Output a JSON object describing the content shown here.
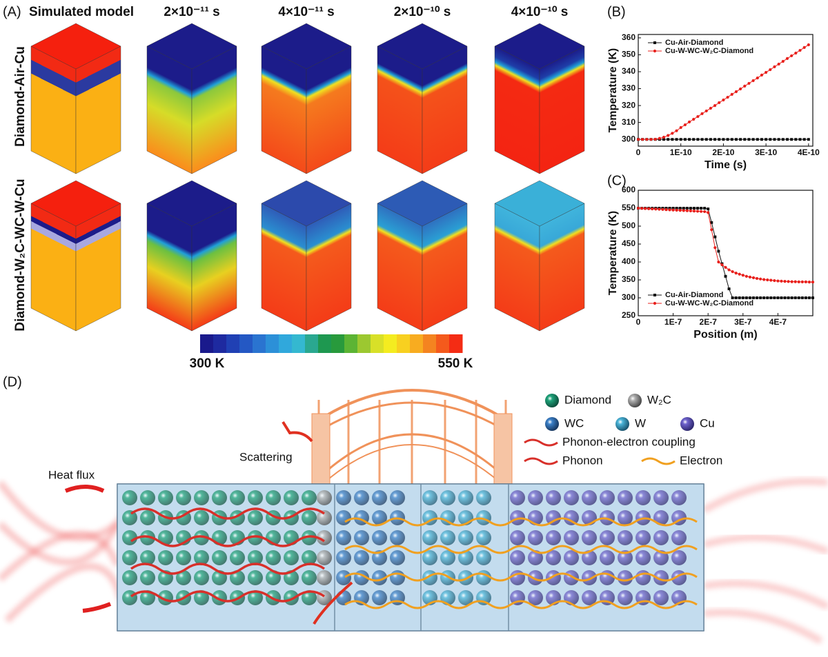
{
  "figure": {
    "panel_labels": [
      "(A)",
      "(B)",
      "(C)",
      "(D)"
    ],
    "panel_a": {
      "column_titles": [
        "Simulated model",
        "2×10⁻¹¹ s",
        "4×10⁻¹¹ s",
        "2×10⁻¹⁰ s",
        "4×10⁻¹⁰ s"
      ],
      "row_labels": [
        "Diamond-Air-Cu",
        "Diamond-W₂C-WC-W-Cu"
      ],
      "colorbar": {
        "min_label": "300 K",
        "max_label": "550 K"
      }
    },
    "panel_d": {
      "heat_flux": "Heat flux",
      "scattering": "Scattering",
      "legend": [
        "Diamond",
        "W₂C",
        "WC",
        "W",
        "Cu"
      ],
      "arrows": [
        "Phonon-electron coupling",
        "Phonon",
        "Electron"
      ]
    }
  },
  "chart_data": [
    {
      "type": "line",
      "xlabel": "Time (s)",
      "ylabel": "Temperature (K)",
      "x": [
        0,
        1e-11,
        2e-11,
        3e-11,
        4e-11,
        5e-11,
        6e-11,
        7e-11,
        8e-11,
        9e-11,
        1e-10,
        1.1e-10,
        1.2e-10,
        1.3e-10,
        1.4e-10,
        1.5e-10,
        1.6e-10,
        1.7e-10,
        1.8e-10,
        1.9e-10,
        2e-10,
        2.1e-10,
        2.2e-10,
        2.3e-10,
        2.4e-10,
        2.5e-10,
        2.6e-10,
        2.7e-10,
        2.8e-10,
        2.9e-10,
        3e-10,
        3.1e-10,
        3.2e-10,
        3.3e-10,
        3.4e-10,
        3.5e-10,
        3.6e-10,
        3.7e-10,
        3.8e-10,
        3.9e-10,
        4e-10
      ],
      "series": [
        {
          "name": "Cu-Air-Diamond",
          "color": "#111111",
          "marker": "square",
          "values": [
            300,
            300,
            300,
            300,
            300,
            300,
            300,
            300,
            300,
            300,
            300,
            300,
            300,
            300,
            300,
            300,
            300,
            300,
            300,
            300,
            300,
            300,
            300,
            300,
            300,
            300,
            300,
            300,
            300,
            300,
            300,
            300,
            300,
            300,
            300,
            300,
            300,
            300,
            300,
            300,
            300
          ]
        },
        {
          "name": "Cu-W-WC-W₂C-Diamond",
          "color": "#e8201c",
          "marker": "circle",
          "values": [
            300,
            300,
            300,
            300,
            300.1,
            300.6,
            301.3,
            302.3,
            303.6,
            305.1,
            307,
            308.6,
            310.3,
            311.9,
            313.5,
            315.2,
            316.8,
            318.4,
            320,
            321.7,
            323.3,
            324.9,
            326.6,
            328.2,
            329.8,
            331.5,
            333.1,
            334.7,
            336.3,
            338,
            339.6,
            341.2,
            342.9,
            344.5,
            346.1,
            347.8,
            349.4,
            351,
            352.6,
            354.3,
            355.9
          ]
        }
      ],
      "xlim": [
        0,
        4.1e-10
      ],
      "ylim": [
        296,
        362
      ],
      "xticks": [
        0,
        {
          "value": 1e-10,
          "label": "1E-10"
        },
        {
          "value": 2e-10,
          "label": "2E-10"
        },
        {
          "value": 3e-10,
          "label": "3E-10"
        },
        {
          "value": 4e-10,
          "label": "4E-10"
        }
      ],
      "yticks": [
        300,
        310,
        320,
        330,
        340,
        350,
        360
      ],
      "legend": "upper left"
    },
    {
      "type": "line",
      "xlabel": "Position (m)",
      "ylabel": "Temperature (K)",
      "x": [
        0,
        1e-08,
        2e-08,
        3e-08,
        4e-08,
        5e-08,
        6e-08,
        7e-08,
        8e-08,
        9e-08,
        1e-07,
        1.1e-07,
        1.2e-07,
        1.3e-07,
        1.4e-07,
        1.5e-07,
        1.6e-07,
        1.7e-07,
        1.8e-07,
        1.9e-07,
        2e-07,
        2.1e-07,
        2.2e-07,
        2.3e-07,
        2.4e-07,
        2.5e-07,
        2.6e-07,
        2.7e-07,
        2.8e-07,
        2.9e-07,
        3e-07,
        3.1e-07,
        3.2e-07,
        3.3e-07,
        3.4e-07,
        3.5e-07,
        3.6e-07,
        3.7e-07,
        3.8e-07,
        3.9e-07,
        4e-07,
        4.1e-07,
        4.2e-07,
        4.3e-07,
        4.4e-07,
        4.5e-07,
        4.6e-07,
        4.7e-07,
        4.8e-07,
        4.9e-07,
        5e-07
      ],
      "series": [
        {
          "name": "Cu-Air-Diamond",
          "color": "#111111",
          "marker": "square",
          "values": [
            550,
            550,
            550,
            550,
            550,
            550,
            550,
            550,
            550,
            550,
            550,
            550,
            550,
            550,
            550,
            550,
            550,
            550,
            550,
            550,
            548,
            510,
            470,
            430,
            395,
            360,
            325,
            300,
            300,
            300,
            300,
            300,
            300,
            300,
            300,
            300,
            300,
            300,
            300,
            300,
            300,
            300,
            300,
            300,
            300,
            300,
            300,
            300,
            300,
            300,
            300
          ]
        },
        {
          "name": "Cu-W-WC-W₂C-Diamond",
          "color": "#e8201c",
          "marker": "circle",
          "values": [
            550,
            549.5,
            549,
            548.5,
            548,
            547.5,
            547,
            546.5,
            546,
            545.5,
            545,
            544.5,
            544,
            543.5,
            543,
            542.5,
            542,
            541.5,
            541,
            540.5,
            538,
            490,
            440,
            400,
            392,
            385,
            378,
            373,
            369,
            366,
            363,
            360,
            358,
            356,
            354,
            352.5,
            351,
            350,
            349,
            348,
            347,
            346.5,
            346,
            345.5,
            345,
            345,
            344.5,
            344.5,
            344.5,
            344,
            344
          ]
        }
      ],
      "xlim": [
        0,
        5e-07
      ],
      "ylim": [
        250,
        600
      ],
      "xticks": [
        0,
        {
          "value": 1e-07,
          "label": "1E-7"
        },
        {
          "value": 2e-07,
          "label": "2E-7"
        },
        {
          "value": 3e-07,
          "label": "3E-7"
        },
        {
          "value": 4e-07,
          "label": "4E-7"
        }
      ],
      "yticks": [
        250,
        300,
        350,
        400,
        450,
        500,
        550,
        600
      ],
      "legend": "lower left"
    }
  ]
}
